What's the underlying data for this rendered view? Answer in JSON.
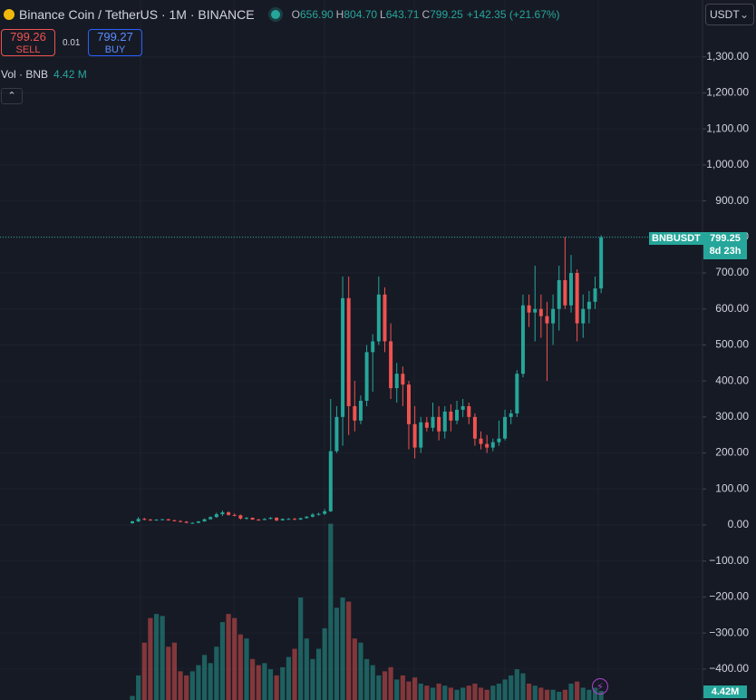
{
  "chart_data": {
    "type": "candlestick",
    "title": "Binance Coin / TetherUS · 1M · BINANCE",
    "readout": [
      {
        "key": "O",
        "value": "656.90"
      },
      {
        "key": "H",
        "value": "804.70"
      },
      {
        "key": "L",
        "value": "643.71"
      },
      {
        "key": "C",
        "value": "799.25"
      }
    ],
    "change": "+142.35 (+21.67%)",
    "sell": {
      "price": "799.26",
      "label": "SELL"
    },
    "spread": "0.01",
    "buy": {
      "price": "799.27",
      "label": "BUY"
    },
    "currency": "USDT",
    "volume_legend": {
      "label": "Vol · BNB",
      "value": "4.42 M"
    },
    "symbol_tag": {
      "name": "BNBUSDT",
      "price": "799.25",
      "countdown": "8d 23h"
    },
    "volume_tag": "4.42M",
    "up_color": "#26a69a",
    "down_color": "#ef5350",
    "open": [
      5,
      10,
      17,
      15,
      14,
      15,
      16,
      13,
      11,
      9,
      6,
      6,
      10,
      16,
      22,
      30,
      35,
      28,
      27,
      18,
      20,
      15,
      14,
      17,
      20,
      13,
      17,
      17,
      15,
      19,
      23,
      29,
      31,
      38,
      205,
      300,
      630,
      330,
      290,
      345,
      480,
      510,
      640,
      510,
      380,
      420,
      390,
      280,
      215,
      285,
      270,
      300,
      260,
      315,
      290,
      320,
      330,
      300,
      240,
      225,
      215,
      230,
      240,
      300,
      310,
      420,
      610,
      590,
      600,
      580,
      560,
      600,
      680,
      610,
      700,
      560,
      600,
      620,
      656.9
    ],
    "high": [
      12,
      22,
      20,
      17,
      16,
      17,
      17,
      15,
      13,
      11,
      8,
      11,
      18,
      24,
      34,
      40,
      38,
      32,
      29,
      22,
      21,
      17,
      19,
      22,
      22,
      18,
      19,
      20,
      20,
      25,
      33,
      34,
      44,
      350,
      330,
      690,
      690,
      400,
      360,
      500,
      530,
      690,
      660,
      560,
      450,
      440,
      400,
      330,
      300,
      300,
      340,
      330,
      330,
      335,
      345,
      350,
      340,
      310,
      260,
      250,
      240,
      290,
      320,
      320,
      430,
      640,
      640,
      720,
      640,
      620,
      640,
      720,
      800,
      750,
      710,
      640,
      650,
      690,
      804.7
    ],
    "low": [
      3,
      8,
      13,
      12,
      12,
      13,
      12,
      10,
      8,
      5,
      4,
      5,
      9,
      15,
      20,
      25,
      26,
      24,
      15,
      15,
      14,
      12,
      13,
      16,
      10,
      12,
      15,
      14,
      14,
      18,
      21,
      26,
      28,
      36,
      200,
      220,
      250,
      260,
      280,
      330,
      370,
      500,
      480,
      350,
      340,
      330,
      210,
      185,
      200,
      260,
      260,
      235,
      240,
      260,
      280,
      300,
      280,
      220,
      210,
      200,
      205,
      220,
      235,
      280,
      300,
      410,
      550,
      510,
      520,
      400,
      500,
      540,
      600,
      590,
      510,
      520,
      560,
      600,
      643.71
    ],
    "close": [
      10,
      17,
      15,
      14,
      15,
      16,
      13,
      11,
      9,
      6,
      6,
      10,
      16,
      22,
      30,
      35,
      28,
      27,
      18,
      20,
      15,
      14,
      17,
      20,
      13,
      17,
      17,
      15,
      19,
      23,
      29,
      31,
      38,
      205,
      300,
      630,
      330,
      290,
      345,
      480,
      510,
      640,
      510,
      380,
      420,
      390,
      280,
      215,
      285,
      270,
      300,
      260,
      315,
      290,
      320,
      330,
      300,
      240,
      225,
      215,
      230,
      240,
      300,
      310,
      420,
      610,
      590,
      600,
      580,
      560,
      600,
      680,
      610,
      700,
      560,
      600,
      620,
      656.9,
      799.25
    ],
    "volume": [
      2,
      12,
      28,
      40,
      42,
      41,
      26,
      28,
      14,
      12,
      14,
      17,
      22,
      18,
      26,
      38,
      42,
      40,
      32,
      30,
      20,
      17,
      18,
      15,
      12,
      16,
      21,
      25,
      50,
      30,
      20,
      25,
      35,
      86,
      45,
      50,
      48,
      30,
      28,
      20,
      17,
      12,
      14,
      16,
      10,
      12,
      9,
      11,
      8,
      7,
      6,
      8,
      7,
      6,
      5,
      6,
      7,
      8,
      6,
      5,
      7,
      8,
      10,
      12,
      15,
      13,
      8,
      7,
      6,
      5,
      5,
      4,
      5,
      8,
      9,
      6,
      5,
      6,
      4.42
    ],
    "volume_ylim": [
      0,
      100
    ],
    "ylim": [
      -486,
      1458
    ],
    "yticks": [
      {
        "value": 1300,
        "label": "1,300.00"
      },
      {
        "value": 1200,
        "label": "1,200.00"
      },
      {
        "value": 1100,
        "label": "1,100.00"
      },
      {
        "value": 1000,
        "label": "1,000.00"
      },
      {
        "value": 900,
        "label": "900.00"
      },
      {
        "value": 800,
        "label": "800.00"
      },
      {
        "value": 700,
        "label": "700.00"
      },
      {
        "value": 600,
        "label": "600.00"
      },
      {
        "value": 500,
        "label": "500.00"
      },
      {
        "value": 400,
        "label": "400.00"
      },
      {
        "value": 300,
        "label": "300.00"
      },
      {
        "value": 200,
        "label": "200.00"
      },
      {
        "value": 100,
        "label": "100.00"
      },
      {
        "value": 0,
        "label": "0.00"
      },
      {
        "value": -100,
        "label": "−100.00"
      },
      {
        "value": -200,
        "label": "−200.00"
      },
      {
        "value": -300,
        "label": "−300.00"
      },
      {
        "value": -400,
        "label": "−400.00"
      }
    ],
    "grid": true
  }
}
